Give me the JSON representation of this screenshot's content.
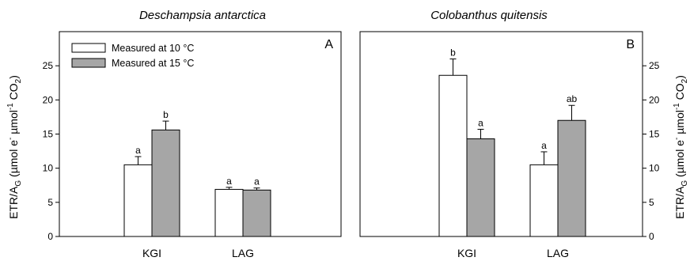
{
  "colors": {
    "series_10": "#ffffff",
    "series_15": "#a6a6a6",
    "axis": "#000000"
  },
  "y_label": {
    "main": "ETR/A",
    "sub": "G",
    "unit_open": " (µmol e",
    "sup1": "-",
    "unit_mid": " µmol",
    "sup2": "-1",
    "unit_co2": " CO",
    "sub2": "2",
    "unit_close": ")"
  },
  "chart_data": [
    {
      "type": "bar",
      "title": "Deschampsia antarctica",
      "panel": "A",
      "categories": [
        "KGI",
        "LAG"
      ],
      "ylim": [
        0,
        30
      ],
      "yticks": [
        0,
        5,
        10,
        15,
        20,
        25
      ],
      "ytick_labels": [
        "0",
        "5",
        "10",
        "15",
        "20",
        "25"
      ],
      "y_axis_side": "left",
      "legend": {
        "placement": "top-left",
        "entries": [
          "Measured at 10 °C",
          "Measured at 15 °C"
        ]
      },
      "series": [
        {
          "name": "Measured at 10 °C",
          "values": [
            10.5,
            6.9
          ],
          "errors": [
            1.2,
            0.3
          ],
          "labels": [
            "a",
            "a"
          ]
        },
        {
          "name": "Measured at 15 °C",
          "values": [
            15.6,
            6.8
          ],
          "errors": [
            1.3,
            0.3
          ],
          "labels": [
            "b",
            "a"
          ]
        }
      ]
    },
    {
      "type": "bar",
      "title": "Colobanthus quitensis",
      "panel": "B",
      "categories": [
        "KGI",
        "LAG"
      ],
      "ylim": [
        0,
        30
      ],
      "yticks": [
        0,
        5,
        10,
        15,
        20,
        25
      ],
      "ytick_labels": [
        "0",
        "5",
        "10",
        "15",
        "20",
        "25"
      ],
      "y_axis_side": "right",
      "series": [
        {
          "name": "Measured at 10 °C",
          "values": [
            23.6,
            10.5
          ],
          "errors": [
            2.4,
            1.9
          ],
          "labels": [
            "b",
            "a"
          ]
        },
        {
          "name": "Measured at 15 °C",
          "values": [
            14.3,
            17.0
          ],
          "errors": [
            1.4,
            2.2
          ],
          "labels": [
            "a",
            "ab"
          ]
        }
      ]
    }
  ]
}
